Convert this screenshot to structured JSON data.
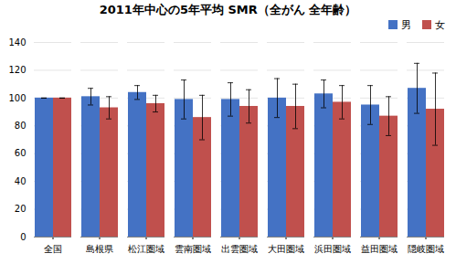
{
  "chart_data": {
    "type": "bar",
    "title": "2011年中心の5年平均 SMR（全がん 全年齢）",
    "categories": [
      "全国",
      "島根県",
      "松江圏域",
      "雲南圏域",
      "出雲圏域",
      "大田圏域",
      "浜田圏域",
      "益田圏域",
      "隠岐圏域"
    ],
    "series": [
      {
        "name": "男",
        "color": "#4472C4",
        "values": [
          100,
          101,
          104,
          99,
          99,
          100,
          103,
          95,
          107
        ],
        "err_low": [
          0,
          6,
          5,
          14,
          12,
          14,
          10,
          14,
          18
        ],
        "err_high": [
          0,
          6,
          5,
          14,
          12,
          14,
          10,
          14,
          18
        ]
      },
      {
        "name": "女",
        "color": "#C0504D",
        "values": [
          100,
          93,
          96,
          86,
          94,
          94,
          97,
          87,
          92
        ],
        "err_low": [
          0,
          8,
          6,
          16,
          12,
          16,
          12,
          14,
          26
        ],
        "err_high": [
          0,
          8,
          6,
          16,
          12,
          16,
          12,
          14,
          26
        ]
      }
    ],
    "ylim": [
      0,
      140
    ],
    "yticks": [
      0,
      20,
      40,
      60,
      80,
      100,
      120,
      140
    ],
    "grid": true,
    "legend": "right"
  }
}
